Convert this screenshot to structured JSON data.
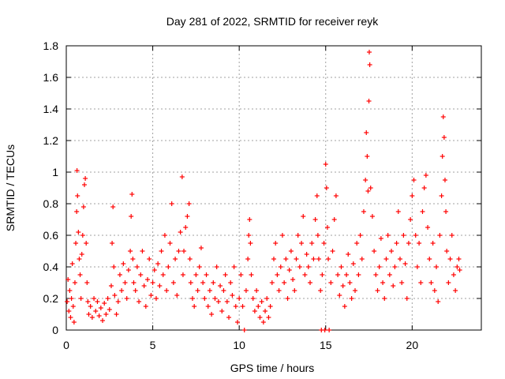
{
  "chart_data": {
    "type": "scatter",
    "title": "Day 281 of 2022, SRMTID for receiver reyk",
    "xlabel": "GPS time / hours",
    "ylabel": "SRMTID / TECUs",
    "xlim": [
      0,
      24
    ],
    "ylim": [
      0,
      1.8
    ],
    "xticks": [
      0,
      5,
      10,
      15,
      20
    ],
    "xtick_labels": [
      "0",
      "5",
      "10",
      "15",
      "20"
    ],
    "yticks": [
      0,
      0.2,
      0.4,
      0.6,
      0.8,
      1.0,
      1.2,
      1.4,
      1.6,
      1.8
    ],
    "ytick_labels": [
      "0",
      "0.2",
      "0.4",
      "0.6",
      "0.8",
      "1",
      "1.2",
      "1.4",
      "1.6",
      "1.8"
    ],
    "grid": true,
    "marker": "plus",
    "color": "#ff0000",
    "series": [
      {
        "name": "SRMTID",
        "points": [
          [
            0.05,
            0.18
          ],
          [
            0.1,
            0.32
          ],
          [
            0.15,
            0.12
          ],
          [
            0.2,
            0.25
          ],
          [
            0.25,
            0.08
          ],
          [
            0.3,
            0.2
          ],
          [
            0.35,
            0.42
          ],
          [
            0.4,
            0.15
          ],
          [
            0.45,
            0.05
          ],
          [
            0.5,
            0.3
          ],
          [
            0.55,
            0.55
          ],
          [
            0.6,
            0.75
          ],
          [
            0.62,
            1.01
          ],
          [
            0.65,
            0.85
          ],
          [
            0.7,
            0.62
          ],
          [
            0.75,
            0.45
          ],
          [
            0.8,
            0.35
          ],
          [
            0.85,
            0.2
          ],
          [
            0.9,
            0.48
          ],
          [
            0.95,
            0.6
          ],
          [
            1.0,
            0.78
          ],
          [
            1.05,
            0.92
          ],
          [
            1.1,
            0.96
          ],
          [
            1.15,
            0.55
          ],
          [
            1.2,
            0.3
          ],
          [
            1.25,
            0.18
          ],
          [
            1.3,
            0.1
          ],
          [
            1.4,
            0.15
          ],
          [
            1.5,
            0.08
          ],
          [
            1.6,
            0.2
          ],
          [
            1.7,
            0.12
          ],
          [
            1.8,
            0.18
          ],
          [
            1.9,
            0.09
          ],
          [
            2.0,
            0.14
          ],
          [
            2.1,
            0.06
          ],
          [
            2.2,
            0.17
          ],
          [
            2.3,
            0.1
          ],
          [
            2.4,
            0.2
          ],
          [
            2.5,
            0.13
          ],
          [
            2.6,
            0.28
          ],
          [
            2.65,
            0.55
          ],
          [
            2.7,
            0.78
          ],
          [
            2.75,
            0.4
          ],
          [
            2.8,
            0.22
          ],
          [
            2.9,
            0.1
          ],
          [
            3.0,
            0.18
          ],
          [
            3.1,
            0.35
          ],
          [
            3.2,
            0.25
          ],
          [
            3.3,
            0.42
          ],
          [
            3.4,
            0.3
          ],
          [
            3.5,
            0.2
          ],
          [
            3.6,
            0.38
          ],
          [
            3.7,
            0.5
          ],
          [
            3.75,
            0.72
          ],
          [
            3.8,
            0.86
          ],
          [
            3.85,
            0.45
          ],
          [
            3.9,
            0.3
          ],
          [
            4.0,
            0.25
          ],
          [
            4.1,
            0.4
          ],
          [
            4.2,
            0.18
          ],
          [
            4.3,
            0.35
          ],
          [
            4.4,
            0.5
          ],
          [
            4.5,
            0.28
          ],
          [
            4.6,
            0.15
          ],
          [
            4.7,
            0.32
          ],
          [
            4.8,
            0.45
          ],
          [
            4.9,
            0.22
          ],
          [
            5.0,
            0.3
          ],
          [
            5.1,
            0.38
          ],
          [
            5.2,
            0.2
          ],
          [
            5.3,
            0.42
          ],
          [
            5.4,
            0.28
          ],
          [
            5.5,
            0.5
          ],
          [
            5.6,
            0.35
          ],
          [
            5.7,
            0.6
          ],
          [
            5.8,
            0.25
          ],
          [
            5.9,
            0.4
          ],
          [
            6.0,
            0.55
          ],
          [
            6.1,
            0.8
          ],
          [
            6.2,
            0.3
          ],
          [
            6.3,
            0.45
          ],
          [
            6.4,
            0.22
          ],
          [
            6.5,
            0.5
          ],
          [
            6.6,
            0.62
          ],
          [
            6.7,
            0.97
          ],
          [
            6.75,
            0.35
          ],
          [
            6.8,
            0.5
          ],
          [
            6.9,
            0.65
          ],
          [
            7.0,
            0.72
          ],
          [
            7.1,
            0.8
          ],
          [
            7.15,
            0.45
          ],
          [
            7.2,
            0.3
          ],
          [
            7.3,
            0.2
          ],
          [
            7.4,
            0.15
          ],
          [
            7.5,
            0.35
          ],
          [
            7.6,
            0.25
          ],
          [
            7.7,
            0.4
          ],
          [
            7.8,
            0.52
          ],
          [
            7.9,
            0.3
          ],
          [
            8.0,
            0.2
          ],
          [
            8.1,
            0.35
          ],
          [
            8.2,
            0.15
          ],
          [
            8.3,
            0.25
          ],
          [
            8.4,
            0.1
          ],
          [
            8.5,
            0.3
          ],
          [
            8.6,
            0.2
          ],
          [
            8.7,
            0.4
          ],
          [
            8.8,
            0.18
          ],
          [
            8.9,
            0.28
          ],
          [
            9.0,
            0.12
          ],
          [
            9.1,
            0.25
          ],
          [
            9.2,
            0.35
          ],
          [
            9.3,
            0.18
          ],
          [
            9.4,
            0.08
          ],
          [
            9.5,
            0.3
          ],
          [
            9.6,
            0.22
          ],
          [
            9.7,
            0.4
          ],
          [
            9.8,
            0.15
          ],
          [
            9.9,
            0.05
          ],
          [
            10.0,
            0.2
          ],
          [
            10.1,
            0.35
          ],
          [
            10.2,
            0.15
          ],
          [
            10.3,
            0.0
          ],
          [
            10.4,
            0.25
          ],
          [
            10.5,
            0.45
          ],
          [
            10.55,
            0.6
          ],
          [
            10.6,
            0.7
          ],
          [
            10.65,
            0.55
          ],
          [
            10.7,
            0.35
          ],
          [
            10.8,
            0.2
          ],
          [
            10.9,
            0.12
          ],
          [
            11.0,
            0.25
          ],
          [
            11.1,
            0.15
          ],
          [
            11.2,
            0.08
          ],
          [
            11.3,
            0.18
          ],
          [
            11.4,
            0.05
          ],
          [
            11.5,
            0.12
          ],
          [
            11.6,
            0.2
          ],
          [
            11.7,
            0.08
          ],
          [
            11.8,
            0.15
          ],
          [
            11.9,
            0.3
          ],
          [
            12.0,
            0.45
          ],
          [
            12.1,
            0.55
          ],
          [
            12.2,
            0.35
          ],
          [
            12.3,
            0.25
          ],
          [
            12.4,
            0.4
          ],
          [
            12.5,
            0.6
          ],
          [
            12.6,
            0.3
          ],
          [
            12.7,
            0.45
          ],
          [
            12.8,
            0.2
          ],
          [
            12.9,
            0.38
          ],
          [
            13.0,
            0.5
          ],
          [
            13.1,
            0.32
          ],
          [
            13.2,
            0.25
          ],
          [
            13.3,
            0.45
          ],
          [
            13.4,
            0.6
          ],
          [
            13.5,
            0.4
          ],
          [
            13.6,
            0.55
          ],
          [
            13.7,
            0.72
          ],
          [
            13.8,
            0.35
          ],
          [
            13.9,
            0.48
          ],
          [
            14.0,
            0.4
          ],
          [
            14.1,
            0.3
          ],
          [
            14.2,
            0.55
          ],
          [
            14.3,
            0.45
          ],
          [
            14.4,
            0.7
          ],
          [
            14.5,
            0.85
          ],
          [
            14.55,
            0.6
          ],
          [
            14.6,
            0.45
          ],
          [
            14.7,
            0.25
          ],
          [
            14.75,
            0.0
          ],
          [
            14.8,
            0.35
          ],
          [
            14.9,
            0.55
          ],
          [
            14.95,
            0.0
          ],
          [
            15.0,
            1.05
          ],
          [
            15.05,
            0.9
          ],
          [
            15.1,
            0.65
          ],
          [
            15.15,
            0.45
          ],
          [
            15.2,
            0.0
          ],
          [
            15.3,
            0.3
          ],
          [
            15.4,
            0.5
          ],
          [
            15.5,
            0.7
          ],
          [
            15.6,
            0.85
          ],
          [
            15.7,
            0.35
          ],
          [
            15.8,
            0.22
          ],
          [
            15.9,
            0.4
          ],
          [
            16.0,
            0.28
          ],
          [
            16.1,
            0.15
          ],
          [
            16.2,
            0.35
          ],
          [
            16.3,
            0.48
          ],
          [
            16.4,
            0.3
          ],
          [
            16.5,
            0.2
          ],
          [
            16.6,
            0.42
          ],
          [
            16.7,
            0.25
          ],
          [
            16.8,
            0.55
          ],
          [
            16.9,
            0.35
          ],
          [
            17.0,
            0.6
          ],
          [
            17.1,
            0.45
          ],
          [
            17.2,
            0.75
          ],
          [
            17.3,
            0.95
          ],
          [
            17.35,
            1.25
          ],
          [
            17.4,
            1.1
          ],
          [
            17.45,
            0.88
          ],
          [
            17.5,
            1.45
          ],
          [
            17.52,
            1.76
          ],
          [
            17.55,
            1.68
          ],
          [
            17.6,
            0.9
          ],
          [
            17.7,
            0.72
          ],
          [
            17.8,
            0.5
          ],
          [
            17.9,
            0.35
          ],
          [
            18.0,
            0.25
          ],
          [
            18.1,
            0.4
          ],
          [
            18.2,
            0.58
          ],
          [
            18.3,
            0.3
          ],
          [
            18.4,
            0.2
          ],
          [
            18.5,
            0.45
          ],
          [
            18.6,
            0.6
          ],
          [
            18.7,
            0.35
          ],
          [
            18.8,
            0.5
          ],
          [
            18.9,
            0.28
          ],
          [
            19.0,
            0.4
          ],
          [
            19.1,
            0.55
          ],
          [
            19.2,
            0.75
          ],
          [
            19.3,
            0.45
          ],
          [
            19.4,
            0.3
          ],
          [
            19.5,
            0.6
          ],
          [
            19.6,
            0.42
          ],
          [
            19.7,
            0.2
          ],
          [
            19.8,
            0.55
          ],
          [
            19.9,
            0.7
          ],
          [
            20.0,
            0.85
          ],
          [
            20.1,
            0.95
          ],
          [
            20.2,
            0.6
          ],
          [
            20.3,
            0.4
          ],
          [
            20.4,
            0.55
          ],
          [
            20.5,
            0.3
          ],
          [
            20.6,
            0.75
          ],
          [
            20.7,
            0.9
          ],
          [
            20.8,
            0.98
          ],
          [
            20.9,
            0.65
          ],
          [
            21.0,
            0.45
          ],
          [
            21.1,
            0.3
          ],
          [
            21.2,
            0.55
          ],
          [
            21.3,
            0.25
          ],
          [
            21.4,
            0.4
          ],
          [
            21.5,
            0.18
          ],
          [
            21.6,
            0.6
          ],
          [
            21.7,
            0.85
          ],
          [
            21.75,
            1.1
          ],
          [
            21.8,
            1.35
          ],
          [
            21.85,
            1.22
          ],
          [
            21.9,
            0.95
          ],
          [
            21.95,
            0.75
          ],
          [
            22.0,
            0.5
          ],
          [
            22.1,
            0.3
          ],
          [
            22.2,
            0.45
          ],
          [
            22.3,
            0.6
          ],
          [
            22.4,
            0.35
          ],
          [
            22.5,
            0.25
          ],
          [
            22.6,
            0.4
          ],
          [
            22.7,
            0.45
          ],
          [
            22.75,
            0.38
          ]
        ]
      }
    ]
  }
}
